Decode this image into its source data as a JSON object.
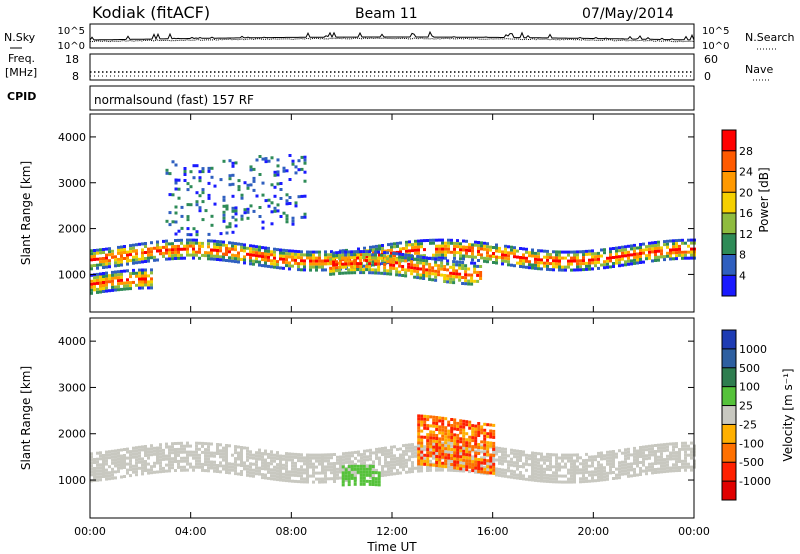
{
  "header": {
    "station": "Kodiak (fitACF)",
    "beam": "Beam 11",
    "date": "07/May/2014"
  },
  "nsky_panel": {
    "left_label": "N.Sky",
    "right_label": "N.Search",
    "left_ticks": [
      "10^5",
      "10^0"
    ],
    "right_ticks": [
      "10^5",
      "10^0"
    ]
  },
  "freq_panel": {
    "left_label_1": "Freq.",
    "left_label_2": "[MHz]",
    "right_label": "Nave",
    "left_ticks": [
      "18",
      "8"
    ],
    "right_ticks": [
      "60",
      "0"
    ]
  },
  "cpid_panel": {
    "label": "CPID",
    "program": "normalsound (fast) 157 RF"
  },
  "chart_data": [
    {
      "type": "heatmap",
      "title": "",
      "ylabel": "Slant Range [km]",
      "xlabel": "",
      "yticks": [
        "1000",
        "2000",
        "3000",
        "4000"
      ],
      "ylim": [
        180,
        4500
      ],
      "xlim_hours": [
        0,
        24
      ],
      "colorbar": {
        "label": "Power [dB]",
        "ticks": [
          "4",
          "8",
          "12",
          "16",
          "20",
          "24",
          "28"
        ],
        "colors": [
          "#1a1aff",
          "#2f5fbf",
          "#2e8b57",
          "#8fbc3f",
          "#f5d000",
          "#ff9900",
          "#ff5a00",
          "#ff0000"
        ]
      },
      "features": [
        {
          "name": "main band",
          "time_start": 0,
          "time_end": 24,
          "range_km": [
            1250,
            1650
          ],
          "intensity": "high"
        },
        {
          "name": "lower band",
          "time_start": 0,
          "time_end": 2.5,
          "range_km": [
            600,
            1000
          ],
          "intensity": "high"
        },
        {
          "name": "midday band",
          "time_start": 9.5,
          "time_end": 15.5,
          "range_km": [
            900,
            1400
          ],
          "intensity": "high"
        },
        {
          "name": "upper scatter",
          "time_start": 3,
          "time_end": 8.5,
          "range_km": [
            2000,
            3600
          ],
          "intensity": "low"
        }
      ]
    },
    {
      "type": "heatmap",
      "title": "",
      "ylabel": "Slant Range [km]",
      "xlabel": "Time UT",
      "xticks": [
        "00:00",
        "04:00",
        "08:00",
        "12:00",
        "16:00",
        "20:00",
        "00:00"
      ],
      "yticks": [
        "1000",
        "2000",
        "3000",
        "4000"
      ],
      "ylim": [
        180,
        4500
      ],
      "xlim_hours": [
        0,
        24
      ],
      "colorbar": {
        "label": "Velocity [m s⁻¹]",
        "ticks": [
          "1000",
          "500",
          "100",
          "25",
          "-25",
          "-100",
          "-500",
          "-1000"
        ],
        "colors": [
          "#1e3cb4",
          "#2e5fa0",
          "#2e7d4f",
          "#55c23a",
          "#c8c8c0",
          "#ffb000",
          "#ff7000",
          "#ff2000",
          "#e00000"
        ]
      },
      "features": [
        {
          "name": "ground scatter band",
          "time_start": 0,
          "time_end": 24,
          "range_km": [
            1100,
            1700
          ],
          "velocity": "near zero"
        },
        {
          "name": "negative flow",
          "time_start": 13,
          "time_end": 16,
          "range_km": [
            1200,
            2300
          ],
          "velocity": "-100 to -500"
        },
        {
          "name": "positive flow",
          "time_start": 10,
          "time_end": 11.5,
          "range_km": [
            800,
            1200
          ],
          "velocity": "100"
        }
      ]
    }
  ]
}
